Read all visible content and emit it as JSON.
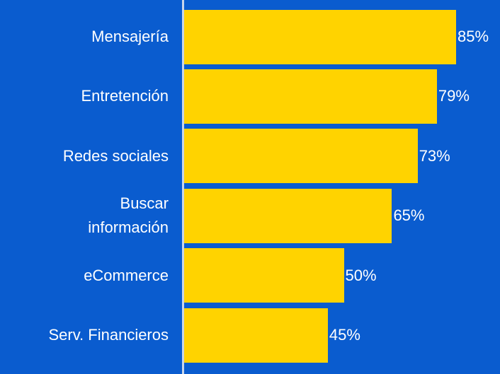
{
  "chart_data": {
    "type": "bar",
    "orientation": "horizontal",
    "categories": [
      "Mensajería",
      "Entretención",
      "Redes sociales",
      "Buscar\ninformación",
      "eCommerce",
      "Serv. Financieros"
    ],
    "values": [
      85,
      79,
      73,
      65,
      50,
      45
    ],
    "value_labels": [
      "85%",
      "79%",
      "73%",
      "65%",
      "50%",
      "45%"
    ],
    "color": "#ffd300",
    "background": "#0a5ccf"
  }
}
